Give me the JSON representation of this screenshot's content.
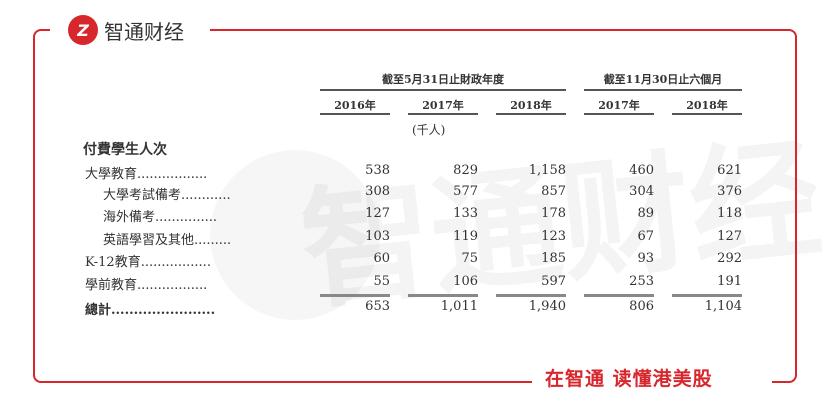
{
  "brand": {
    "logo_text": "智通财经",
    "logo_mark": "Z",
    "footer_slogan": "在智通 读懂港美股",
    "watermark": "智通财经",
    "accent_color": "#d7262c"
  },
  "table": {
    "group_headers": [
      "截至5月31日止財政年度",
      "截至11月30日止六個月"
    ],
    "years": [
      "2016年",
      "2017年",
      "2018年",
      "2017年",
      "2018年"
    ],
    "unit": "(千人)",
    "section_title": "付費學生人次",
    "rows": [
      {
        "label": "大學教育.................",
        "values": [
          "538",
          "829",
          "1,158",
          "460",
          "621"
        ]
      },
      {
        "label": "大學考試備考............",
        "values": [
          "308",
          "577",
          "857",
          "304",
          "376"
        ]
      },
      {
        "label": "海外備考...............",
        "values": [
          "127",
          "133",
          "178",
          "89",
          "118"
        ]
      },
      {
        "label": "英語學習及其他.........",
        "values": [
          "103",
          "119",
          "123",
          "67",
          "127"
        ]
      },
      {
        "label": "K-12教育.................",
        "values": [
          "60",
          "75",
          "185",
          "93",
          "292"
        ]
      },
      {
        "label": "學前教育.................",
        "values": [
          "55",
          "106",
          "597",
          "253",
          "191"
        ]
      }
    ],
    "total": {
      "label": "總計.......................",
      "values": [
        "653",
        "1,011",
        "1,940",
        "806",
        "1,104"
      ]
    }
  }
}
